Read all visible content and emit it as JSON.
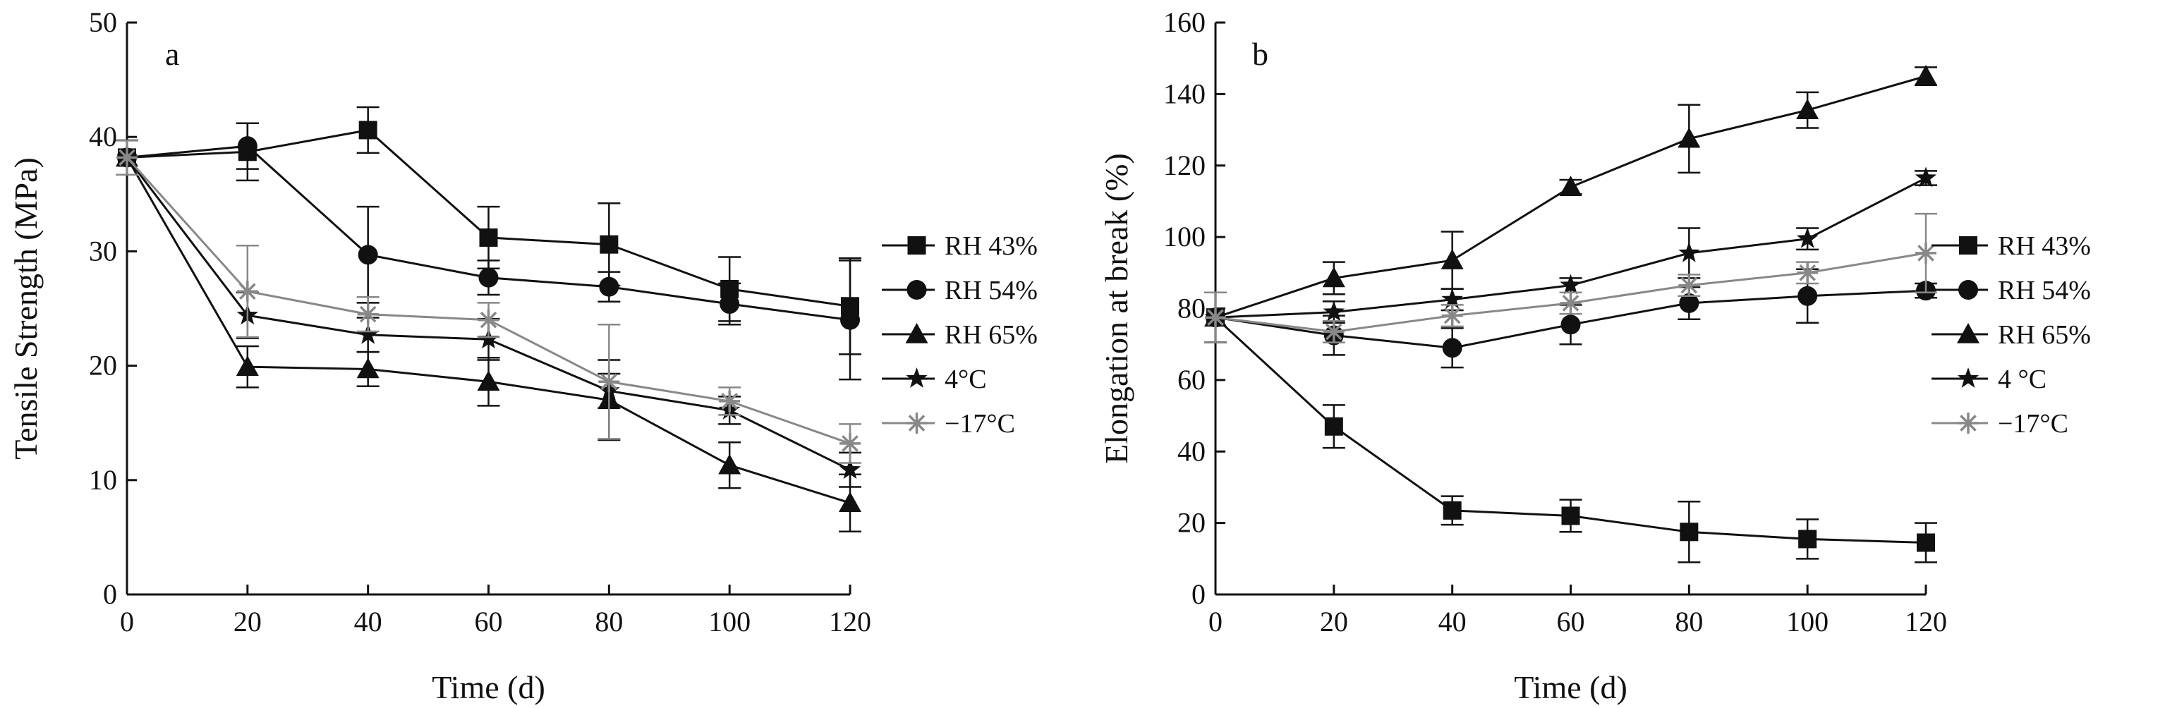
{
  "chart_data": [
    {
      "type": "line",
      "panel_label": "a",
      "xlabel": "Time (d)",
      "ylabel": "Tensile Strength (MPa)",
      "xlim": [
        0,
        120
      ],
      "ylim": [
        0,
        50
      ],
      "xticks": [
        0,
        20,
        40,
        60,
        80,
        100,
        120
      ],
      "yticks": [
        0,
        10,
        20,
        30,
        40,
        50
      ],
      "x": [
        0,
        20,
        40,
        60,
        80,
        100,
        120
      ],
      "legend_position": "right",
      "series": [
        {
          "name": "RH 43%",
          "marker": "square",
          "color": "#111111",
          "values": [
            38.2,
            38.7,
            40.6,
            31.2,
            30.6,
            26.7,
            25.2
          ],
          "errors": [
            1.5,
            2.5,
            2.0,
            2.7,
            3.6,
            2.8,
            4.2
          ]
        },
        {
          "name": "RH 54%",
          "marker": "circle",
          "color": "#111111",
          "values": [
            38.2,
            39.2,
            29.7,
            27.7,
            26.9,
            25.4,
            24.0
          ],
          "errors": [
            1.5,
            2.0,
            4.2,
            1.5,
            1.3,
            1.8,
            5.2
          ]
        },
        {
          "name": "RH 65%",
          "marker": "triangle",
          "color": "#111111",
          "values": [
            38.2,
            19.9,
            19.7,
            18.6,
            17.0,
            11.3,
            8.0
          ],
          "errors": [
            1.5,
            1.8,
            1.5,
            2.1,
            3.5,
            2.0,
            2.5
          ]
        },
        {
          "name": "4°C",
          "marker": "star",
          "color": "#111111",
          "values": [
            38.2,
            24.4,
            22.7,
            22.3,
            17.8,
            16.1,
            10.9
          ],
          "errors": [
            1.5,
            2.0,
            1.5,
            1.8,
            1.5,
            1.2,
            1.5
          ]
        },
        {
          "name": "−17°C",
          "marker": "asterisk",
          "color": "#888888",
          "values": [
            38.2,
            26.5,
            24.5,
            24.0,
            18.6,
            16.9,
            13.2
          ],
          "errors": [
            1.5,
            4.0,
            1.5,
            1.5,
            5.0,
            1.2,
            1.7
          ]
        }
      ]
    },
    {
      "type": "line",
      "panel_label": "b",
      "xlabel": "Time (d)",
      "ylabel": "Elongation at break (%)",
      "xlim": [
        0,
        120
      ],
      "ylim": [
        0,
        160
      ],
      "xticks": [
        0,
        20,
        40,
        60,
        80,
        100,
        120
      ],
      "yticks": [
        0,
        20,
        40,
        60,
        80,
        100,
        120,
        140,
        160
      ],
      "x": [
        0,
        20,
        40,
        60,
        80,
        100,
        120
      ],
      "legend_position": "right",
      "series": [
        {
          "name": "RH 43%",
          "marker": "square",
          "color": "#111111",
          "values": [
            77.5,
            47.0,
            23.5,
            22.0,
            17.5,
            15.5,
            14.5
          ],
          "errors": [
            7.0,
            6.0,
            4.0,
            4.5,
            8.5,
            5.5,
            5.5
          ]
        },
        {
          "name": "RH 54%",
          "marker": "circle",
          "color": "#111111",
          "values": [
            77.5,
            72.5,
            69.0,
            75.5,
            81.5,
            83.5,
            85.0
          ],
          "errors": [
            7.0,
            5.5,
            5.5,
            5.5,
            4.5,
            7.5,
            2.0
          ]
        },
        {
          "name": "RH 65%",
          "marker": "triangle",
          "color": "#111111",
          "values": [
            77.5,
            88.5,
            93.5,
            114.0,
            127.5,
            135.5,
            145.0
          ],
          "errors": [
            7.0,
            4.5,
            8.0,
            2.0,
            9.5,
            5.0,
            2.5
          ]
        },
        {
          "name": "4 °C",
          "marker": "star",
          "color": "#111111",
          "values": [
            77.5,
            79.0,
            82.5,
            86.5,
            95.5,
            99.5,
            116.5
          ],
          "errors": [
            7.0,
            3.0,
            3.0,
            2.0,
            7.0,
            3.0,
            2.0
          ]
        },
        {
          "name": "−17°C",
          "marker": "asterisk",
          "color": "#888888",
          "values": [
            77.5,
            73.5,
            78.0,
            81.5,
            86.5,
            90.0,
            95.5
          ],
          "errors": [
            7.0,
            3.0,
            3.0,
            3.0,
            3.0,
            3.0,
            11.0
          ]
        }
      ]
    }
  ]
}
